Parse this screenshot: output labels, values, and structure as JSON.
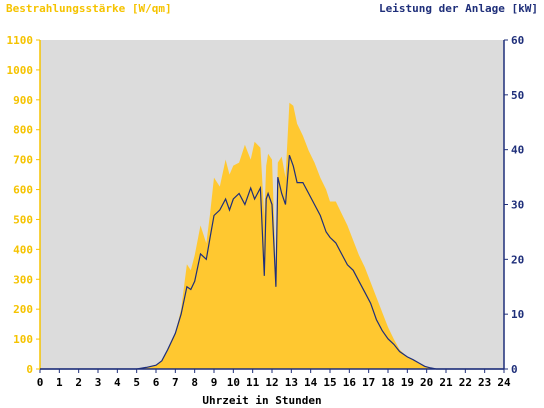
{
  "chart_data": {
    "type": "area",
    "left_axis_title": "Bestrahlungsstärke [W/qm]",
    "right_axis_title": "Leistung der Anlage [kW]",
    "xlabel": "Uhrzeit in Stunden",
    "xlim": [
      0,
      24
    ],
    "ylim_left": [
      0,
      1100
    ],
    "ylim_right": [
      0,
      60
    ],
    "x_ticks": [
      "0",
      "1",
      "2",
      "3",
      "4",
      "5",
      "6",
      "7",
      "8",
      "9",
      "10",
      "11",
      "12",
      "13",
      "14",
      "15",
      "16",
      "17",
      "18",
      "19",
      "20",
      "21",
      "22",
      "23",
      "24"
    ],
    "y_left_ticks": [
      "0",
      "100",
      "200",
      "300",
      "400",
      "500",
      "600",
      "700",
      "800",
      "900",
      "1000",
      "1100"
    ],
    "y_right_ticks": [
      "0",
      "10",
      "20",
      "30",
      "40",
      "50",
      "60"
    ],
    "colors": {
      "irradiance_fill": "#ffc830",
      "power_line": "#1f2f7a",
      "plot_background": "#dcdcdc",
      "left_axis": "#f5c300",
      "right_axis": "#1f2f7a"
    },
    "series": [
      {
        "name": "Bestrahlungsstärke",
        "axis": "left",
        "unit": "W/qm",
        "x": [
          0,
          5,
          5.5,
          6,
          6.3,
          6.6,
          7,
          7.3,
          7.6,
          7.8,
          8.0,
          8.3,
          8.6,
          8.8,
          9.0,
          9.3,
          9.6,
          9.8,
          10.0,
          10.3,
          10.6,
          10.9,
          11.1,
          11.4,
          11.6,
          11.7,
          11.8,
          12.0,
          12.2,
          12.3,
          12.5,
          12.7,
          12.9,
          13.1,
          13.3,
          13.6,
          13.9,
          14.2,
          14.5,
          14.8,
          15.0,
          15.3,
          15.6,
          15.9,
          16.2,
          16.5,
          16.8,
          17.1,
          17.4,
          17.7,
          18.0,
          18.3,
          18.6,
          19.0,
          19.3,
          19.6,
          19.9,
          20.2,
          20.5,
          21,
          24
        ],
        "values": [
          0,
          0,
          5,
          12,
          25,
          60,
          120,
          200,
          350,
          330,
          380,
          480,
          420,
          520,
          640,
          610,
          700,
          650,
          680,
          690,
          750,
          700,
          760,
          740,
          510,
          680,
          720,
          700,
          320,
          690,
          710,
          640,
          890,
          880,
          820,
          780,
          730,
          690,
          640,
          600,
          560,
          560,
          520,
          480,
          430,
          380,
          340,
          290,
          240,
          190,
          140,
          100,
          65,
          40,
          30,
          18,
          8,
          3,
          0,
          0,
          0
        ]
      },
      {
        "name": "Leistung",
        "axis": "right",
        "unit": "kW",
        "x": [
          0,
          5,
          5.5,
          6,
          6.3,
          6.6,
          7,
          7.3,
          7.6,
          7.8,
          8.0,
          8.3,
          8.6,
          8.8,
          9.0,
          9.3,
          9.6,
          9.8,
          10.0,
          10.3,
          10.6,
          10.9,
          11.1,
          11.4,
          11.6,
          11.7,
          11.8,
          12.0,
          12.2,
          12.3,
          12.5,
          12.7,
          12.9,
          13.1,
          13.3,
          13.6,
          13.9,
          14.2,
          14.5,
          14.8,
          15.0,
          15.3,
          15.6,
          15.9,
          16.2,
          16.5,
          16.8,
          17.1,
          17.4,
          17.7,
          18.0,
          18.3,
          18.6,
          19.0,
          19.3,
          19.6,
          19.9,
          20.2,
          20.5,
          21,
          24
        ],
        "values": [
          0,
          0,
          0.3,
          0.7,
          1.5,
          3.5,
          6.5,
          10,
          15,
          14.5,
          16,
          21,
          20,
          24,
          28,
          29,
          31,
          29,
          31,
          32,
          30,
          33,
          31,
          33,
          17,
          31,
          32,
          30,
          15,
          35,
          32,
          30,
          39,
          37,
          34,
          34,
          32,
          30,
          28,
          25,
          24,
          23,
          21,
          19,
          18,
          16,
          14,
          12,
          9,
          7,
          5.5,
          4.5,
          3.2,
          2.2,
          1.7,
          1.1,
          0.5,
          0.2,
          0,
          0,
          0
        ]
      }
    ],
    "grid": false,
    "legend": "none"
  }
}
